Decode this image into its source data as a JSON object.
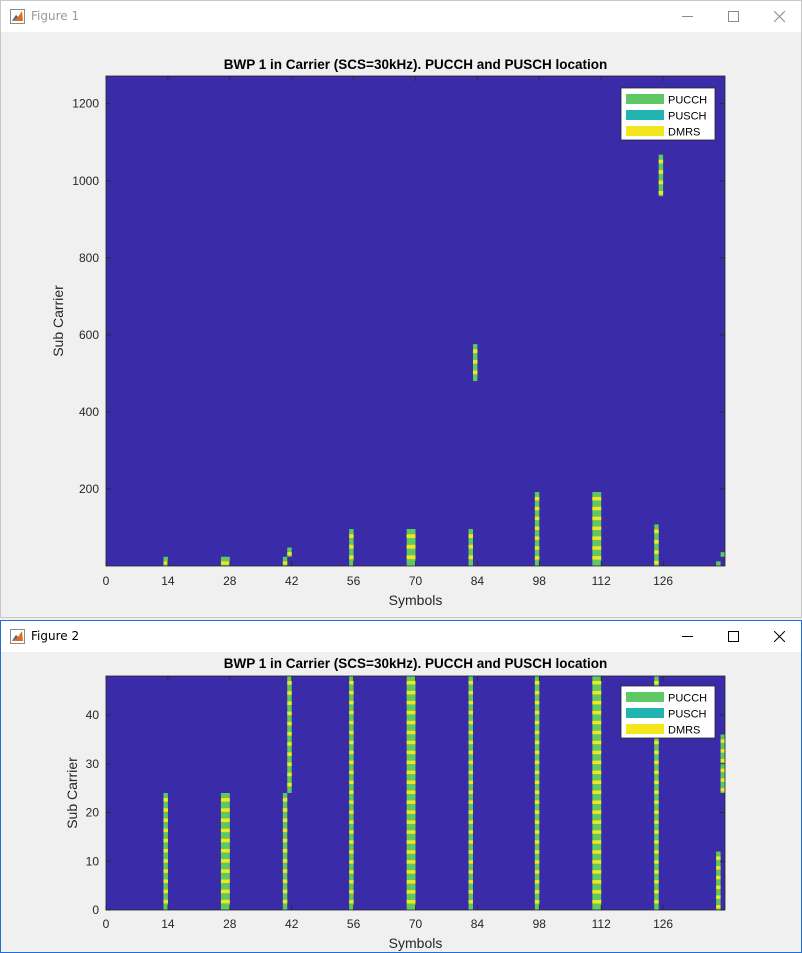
{
  "windows": [
    {
      "title": "Figure 1",
      "active": false
    },
    {
      "title": "Figure 2",
      "active": true
    }
  ],
  "icons": {
    "app": "matlab-app-icon",
    "minimize": "minimize-icon",
    "maximize": "maximize-icon",
    "close": "close-icon"
  },
  "colors": {
    "background": "#3a2ba8",
    "PUCCH": "#5ec962",
    "PUSCH": "#21b3b0",
    "DMRS": "#f3e61c",
    "window_bg": "#f0f0f0"
  },
  "chart_data": [
    {
      "type": "heatmap",
      "title": "BWP 1 in Carrier (SCS=30kHz). PUCCH and PUSCH location",
      "xlabel": "Symbols",
      "ylabel": "Sub Carrier",
      "xlim": [
        0,
        140
      ],
      "ylim": [
        0,
        1272
      ],
      "xticks": [
        0,
        14,
        28,
        42,
        56,
        70,
        84,
        98,
        112,
        126
      ],
      "yticks": [
        200,
        400,
        600,
        800,
        1000,
        1200
      ],
      "legend": {
        "position": "top-right",
        "entries": [
          "PUCCH",
          "PUSCH",
          "DMRS"
        ]
      },
      "allocations": [
        {
          "x": [
            13,
            14
          ],
          "y": [
            0,
            24
          ]
        },
        {
          "x": [
            26,
            28
          ],
          "y": [
            0,
            24
          ]
        },
        {
          "x": [
            40,
            41
          ],
          "y": [
            0,
            24
          ]
        },
        {
          "x": [
            41,
            42
          ],
          "y": [
            24,
            48
          ]
        },
        {
          "x": [
            55,
            56
          ],
          "y": [
            0,
            96
          ]
        },
        {
          "x": [
            68,
            70
          ],
          "y": [
            0,
            96
          ]
        },
        {
          "x": [
            82,
            83
          ],
          "y": [
            0,
            96
          ]
        },
        {
          "x": [
            83,
            84
          ],
          "y": [
            480,
            576
          ]
        },
        {
          "x": [
            97,
            98
          ],
          "y": [
            0,
            192
          ]
        },
        {
          "x": [
            110,
            112
          ],
          "y": [
            0,
            192
          ]
        },
        {
          "x": [
            124,
            125
          ],
          "y": [
            0,
            108
          ]
        },
        {
          "x": [
            125,
            126
          ],
          "y": [
            960,
            1068
          ]
        },
        {
          "x": [
            138,
            139
          ],
          "y": [
            0,
            12
          ]
        },
        {
          "x": [
            139,
            140
          ],
          "y": [
            24,
            36
          ]
        }
      ]
    },
    {
      "type": "heatmap",
      "title": "BWP 1 in Carrier (SCS=30kHz). PUCCH and PUSCH location",
      "xlabel": "Symbols",
      "ylabel": "Sub Carrier",
      "xlim": [
        0,
        140
      ],
      "ylim": [
        0,
        48
      ],
      "xticks": [
        0,
        14,
        28,
        42,
        56,
        70,
        84,
        98,
        112,
        126
      ],
      "yticks": [
        0,
        10,
        20,
        30,
        40
      ],
      "legend": {
        "position": "top-right",
        "entries": [
          "PUCCH",
          "PUSCH",
          "DMRS"
        ]
      },
      "allocations": [
        {
          "x": [
            13,
            14
          ],
          "y": [
            0,
            24
          ]
        },
        {
          "x": [
            26,
            28
          ],
          "y": [
            0,
            24
          ]
        },
        {
          "x": [
            40,
            41
          ],
          "y": [
            0,
            24
          ]
        },
        {
          "x": [
            41,
            42
          ],
          "y": [
            24,
            48
          ]
        },
        {
          "x": [
            55,
            56
          ],
          "y": [
            0,
            48
          ]
        },
        {
          "x": [
            68,
            70
          ],
          "y": [
            0,
            48
          ]
        },
        {
          "x": [
            82,
            83
          ],
          "y": [
            0,
            48
          ]
        },
        {
          "x": [
            97,
            98
          ],
          "y": [
            0,
            48
          ]
        },
        {
          "x": [
            110,
            112
          ],
          "y": [
            0,
            48
          ]
        },
        {
          "x": [
            124,
            125
          ],
          "y": [
            0,
            48
          ]
        },
        {
          "x": [
            138,
            139
          ],
          "y": [
            0,
            12
          ]
        },
        {
          "x": [
            139,
            140
          ],
          "y": [
            24,
            36
          ]
        }
      ]
    }
  ]
}
